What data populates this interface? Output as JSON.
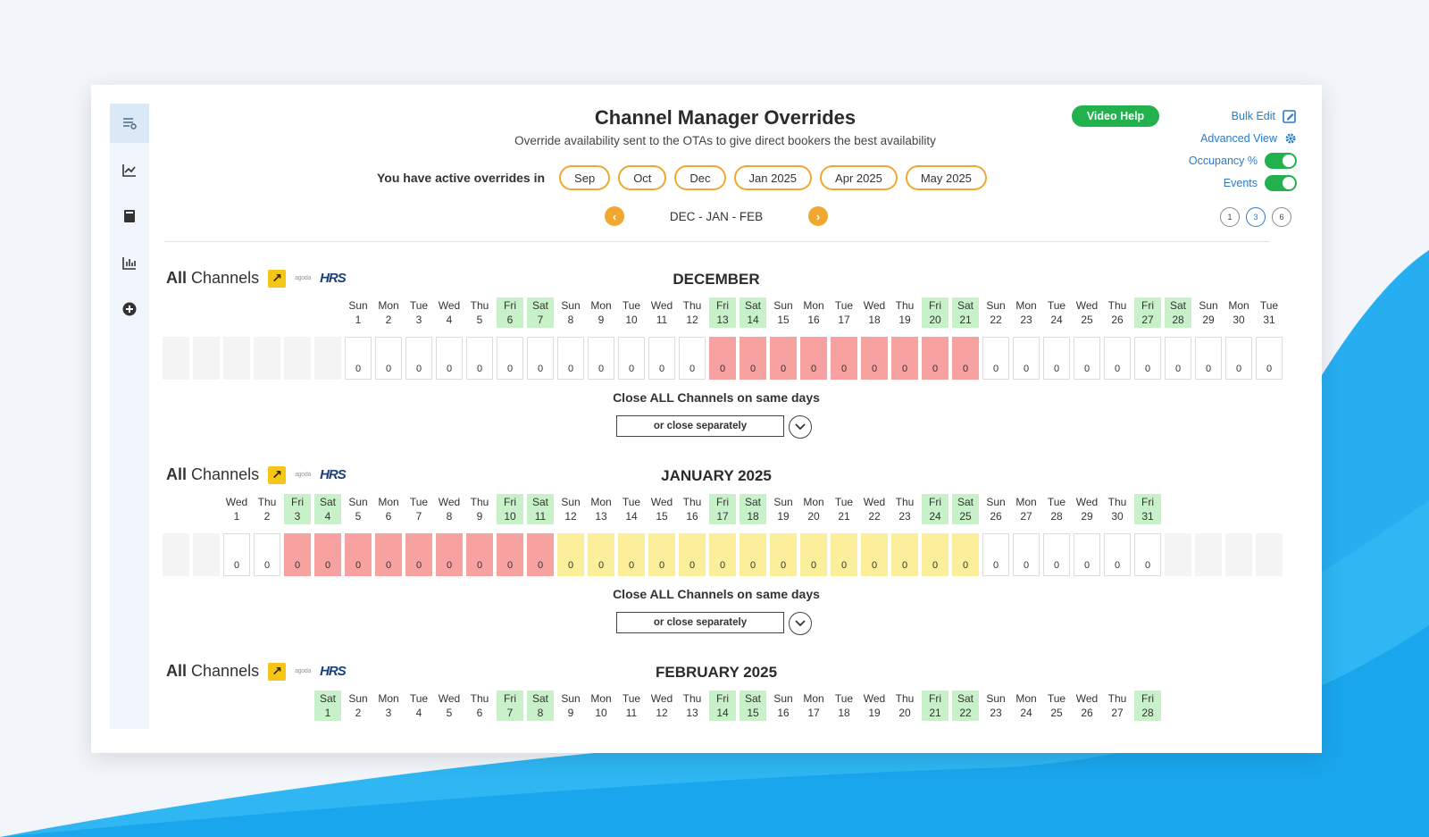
{
  "header": {
    "title": "Channel Manager Overrides",
    "subtitle": "Override availability sent to the OTAs to give direct bookers the best availability",
    "video_help": "Video Help",
    "bulk_edit": "Bulk Edit",
    "advanced_view": "Advanced View",
    "occupancy_label": "Occupancy %",
    "events_label": "Events"
  },
  "overrides": {
    "label": "You have active overrides in",
    "months": [
      "Sep",
      "Oct",
      "Dec",
      "Jan 2025",
      "Apr 2025",
      "May 2025"
    ]
  },
  "nav": {
    "label": "DEC - JAN - FEB",
    "prev": "‹",
    "next": "›"
  },
  "view_options": [
    "1",
    "3",
    "6"
  ],
  "channels": {
    "all": "All",
    "channels": "Channels",
    "agoda": "agoda",
    "hrs": "HRS"
  },
  "close_all": "Close ALL Channels on same days",
  "close_separately": "or close separately",
  "months": [
    {
      "title": "DECEMBER",
      "start_col": 6,
      "days": [
        [
          "Sun",
          "1"
        ],
        [
          "Mon",
          "2"
        ],
        [
          "Tue",
          "3"
        ],
        [
          "Wed",
          "4"
        ],
        [
          "Thu",
          "5"
        ],
        [
          "Fri",
          "6"
        ],
        [
          "Sat",
          "7"
        ],
        [
          "Sun",
          "8"
        ],
        [
          "Mon",
          "9"
        ],
        [
          "Tue",
          "10"
        ],
        [
          "Wed",
          "11"
        ],
        [
          "Thu",
          "12"
        ],
        [
          "Fri",
          "13"
        ],
        [
          "Sat",
          "14"
        ],
        [
          "Sun",
          "15"
        ],
        [
          "Mon",
          "16"
        ],
        [
          "Tue",
          "17"
        ],
        [
          "Wed",
          "18"
        ],
        [
          "Thu",
          "19"
        ],
        [
          "Fri",
          "20"
        ],
        [
          "Sat",
          "21"
        ],
        [
          "Sun",
          "22"
        ],
        [
          "Mon",
          "23"
        ],
        [
          "Tue",
          "24"
        ],
        [
          "Wed",
          "25"
        ],
        [
          "Thu",
          "26"
        ],
        [
          "Fri",
          "27"
        ],
        [
          "Sat",
          "28"
        ],
        [
          "Sun",
          "29"
        ],
        [
          "Mon",
          "30"
        ],
        [
          "Tue",
          "31"
        ]
      ],
      "status": [
        "w",
        "w",
        "w",
        "w",
        "w",
        "w",
        "w",
        "w",
        "w",
        "w",
        "w",
        "w",
        "r",
        "r",
        "r",
        "r",
        "r",
        "r",
        "r",
        "r",
        "r",
        "w",
        "w",
        "w",
        "w",
        "w",
        "w",
        "w",
        "w",
        "w",
        "w"
      ],
      "values": [
        "0",
        "0",
        "0",
        "0",
        "0",
        "0",
        "0",
        "0",
        "0",
        "0",
        "0",
        "0",
        "0",
        "0",
        "0",
        "0",
        "0",
        "0",
        "0",
        "0",
        "0",
        "0",
        "0",
        "0",
        "0",
        "0",
        "0",
        "0",
        "0",
        "0",
        "0"
      ],
      "show_values": true
    },
    {
      "title": "JANUARY 2025",
      "start_col": 2,
      "days": [
        [
          "Wed",
          "1"
        ],
        [
          "Thu",
          "2"
        ],
        [
          "Fri",
          "3"
        ],
        [
          "Sat",
          "4"
        ],
        [
          "Sun",
          "5"
        ],
        [
          "Mon",
          "6"
        ],
        [
          "Tue",
          "7"
        ],
        [
          "Wed",
          "8"
        ],
        [
          "Thu",
          "9"
        ],
        [
          "Fri",
          "10"
        ],
        [
          "Sat",
          "11"
        ],
        [
          "Sun",
          "12"
        ],
        [
          "Mon",
          "13"
        ],
        [
          "Tue",
          "14"
        ],
        [
          "Wed",
          "15"
        ],
        [
          "Thu",
          "16"
        ],
        [
          "Fri",
          "17"
        ],
        [
          "Sat",
          "18"
        ],
        [
          "Sun",
          "19"
        ],
        [
          "Mon",
          "20"
        ],
        [
          "Tue",
          "21"
        ],
        [
          "Wed",
          "22"
        ],
        [
          "Thu",
          "23"
        ],
        [
          "Fri",
          "24"
        ],
        [
          "Sat",
          "25"
        ],
        [
          "Sun",
          "26"
        ],
        [
          "Mon",
          "27"
        ],
        [
          "Tue",
          "28"
        ],
        [
          "Wed",
          "29"
        ],
        [
          "Thu",
          "30"
        ],
        [
          "Fri",
          "31"
        ]
      ],
      "status": [
        "w",
        "w",
        "r",
        "r",
        "r",
        "r",
        "r",
        "r",
        "r",
        "r",
        "r",
        "y",
        "y",
        "y",
        "y",
        "y",
        "y",
        "y",
        "y",
        "y",
        "y",
        "y",
        "y",
        "y",
        "y",
        "w",
        "w",
        "w",
        "w",
        "w",
        "w"
      ],
      "values": [
        "0",
        "0",
        "0",
        "0",
        "0",
        "0",
        "0",
        "0",
        "0",
        "0",
        "0",
        "0",
        "0",
        "0",
        "0",
        "0",
        "0",
        "0",
        "0",
        "0",
        "0",
        "0",
        "0",
        "0",
        "0",
        "0",
        "0",
        "0",
        "0",
        "0",
        "0"
      ],
      "show_values": true
    },
    {
      "title": "FEBRUARY 2025",
      "start_col": 5,
      "days": [
        [
          "Sat",
          "1"
        ],
        [
          "Sun",
          "2"
        ],
        [
          "Mon",
          "3"
        ],
        [
          "Tue",
          "4"
        ],
        [
          "Wed",
          "5"
        ],
        [
          "Thu",
          "6"
        ],
        [
          "Fri",
          "7"
        ],
        [
          "Sat",
          "8"
        ],
        [
          "Sun",
          "9"
        ],
        [
          "Mon",
          "10"
        ],
        [
          "Tue",
          "11"
        ],
        [
          "Wed",
          "12"
        ],
        [
          "Thu",
          "13"
        ],
        [
          "Fri",
          "14"
        ],
        [
          "Sat",
          "15"
        ],
        [
          "Sun",
          "16"
        ],
        [
          "Mon",
          "17"
        ],
        [
          "Tue",
          "18"
        ],
        [
          "Wed",
          "19"
        ],
        [
          "Thu",
          "20"
        ],
        [
          "Fri",
          "21"
        ],
        [
          "Sat",
          "22"
        ],
        [
          "Sun",
          "23"
        ],
        [
          "Mon",
          "24"
        ],
        [
          "Tue",
          "25"
        ],
        [
          "Wed",
          "26"
        ],
        [
          "Thu",
          "27"
        ],
        [
          "Fri",
          "28"
        ]
      ],
      "status": [],
      "values": [],
      "show_values": false
    }
  ],
  "colors": {
    "accent": "#f0a830",
    "weekend": "#c9f1c9",
    "closed": "#f7a1a1",
    "partial": "#fbef9b",
    "green": "#22b14c",
    "link": "#2b7ac9"
  }
}
